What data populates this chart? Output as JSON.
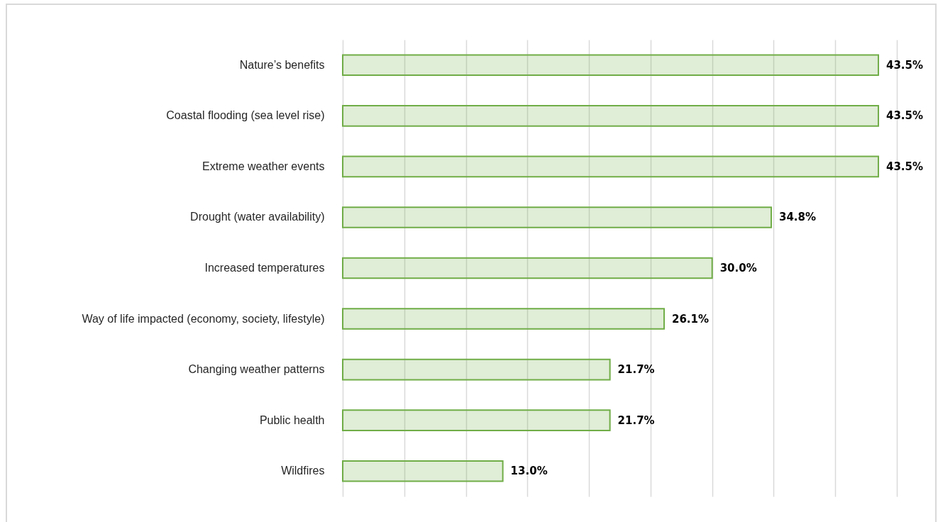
{
  "chart_data": {
    "type": "bar",
    "orientation": "horizontal",
    "categories": [
      "Nature’s benefits",
      "Coastal flooding (sea level rise)",
      "Extreme weather events",
      "Drought (water availability)",
      "Increased temperatures",
      "Way of life impacted (economy, society, lifestyle)",
      "Changing weather patterns",
      "Public health",
      "Wildfires"
    ],
    "values": [
      43.5,
      43.5,
      43.5,
      34.8,
      30.0,
      26.1,
      21.7,
      21.7,
      13.0
    ],
    "value_labels": [
      "43.5%",
      "43.5%",
      "43.5%",
      "34.8%",
      "30.0%",
      "26.1%",
      "21.7%",
      "21.7%",
      "13.0%"
    ],
    "color": "#70ad47",
    "xlim": [
      0,
      45
    ],
    "xticks": [
      0,
      5,
      10,
      15,
      20,
      25,
      30,
      35,
      40,
      45
    ],
    "grid": "x",
    "tick_labels": "y"
  }
}
